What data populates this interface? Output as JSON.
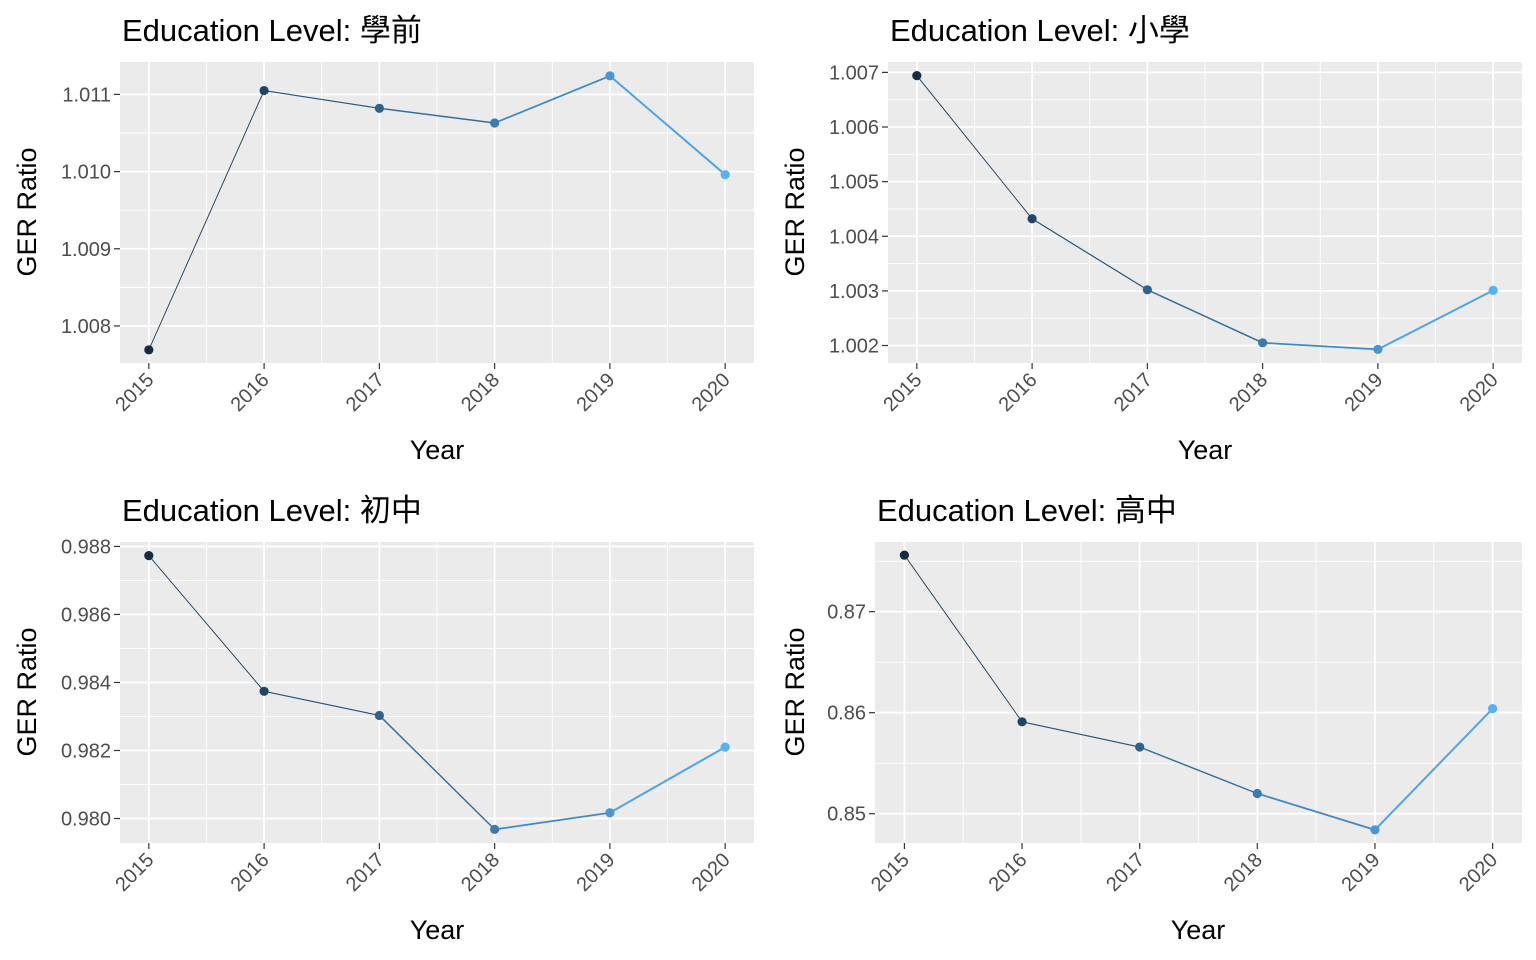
{
  "chart_data": [
    {
      "type": "line",
      "title": "Education Level: 學前",
      "xlabel": "Year",
      "ylabel": "GER Ratio",
      "x": [
        2015,
        2016,
        2017,
        2018,
        2019,
        2020
      ],
      "values": [
        1.00769,
        1.01105,
        1.01082,
        1.01063,
        1.01124,
        1.00996
      ],
      "yticks": [
        1.008,
        1.009,
        1.01,
        1.011
      ],
      "ytick_labels": [
        "1.008",
        "1.009",
        "1.010",
        "1.011"
      ],
      "ylim": [
        1.00752,
        1.01142
      ],
      "color_gradient": [
        "#132b43",
        "#56b1f7"
      ],
      "grid": true
    },
    {
      "type": "line",
      "title": "Education Level: 小學",
      "xlabel": "Year",
      "ylabel": "GER Ratio",
      "x": [
        2015,
        2016,
        2017,
        2018,
        2019,
        2020
      ],
      "values": [
        1.00694,
        1.00432,
        1.00302,
        1.00205,
        1.00193,
        1.00301
      ],
      "yticks": [
        1.002,
        1.003,
        1.004,
        1.005,
        1.006,
        1.007
      ],
      "ytick_labels": [
        "1.002",
        "1.003",
        "1.004",
        "1.005",
        "1.006",
        "1.007"
      ],
      "ylim": [
        1.00168,
        1.00719
      ],
      "color_gradient": [
        "#132b43",
        "#56b1f7"
      ],
      "grid": true
    },
    {
      "type": "line",
      "title": "Education Level: 初中",
      "xlabel": "Year",
      "ylabel": "GER Ratio",
      "x": [
        2015,
        2016,
        2017,
        2018,
        2019,
        2020
      ],
      "values": [
        0.98773,
        0.98374,
        0.98303,
        0.97968,
        0.98017,
        0.9821
      ],
      "yticks": [
        0.98,
        0.982,
        0.984,
        0.986,
        0.988
      ],
      "ytick_labels": [
        "0.980",
        "0.982",
        "0.984",
        "0.986",
        "0.988"
      ],
      "ylim": [
        0.97928,
        0.98813
      ],
      "color_gradient": [
        "#132b43",
        "#56b1f7"
      ],
      "grid": true
    },
    {
      "type": "line",
      "title": "Education Level: 高中",
      "xlabel": "Year",
      "ylabel": "GER Ratio",
      "x": [
        2015,
        2016,
        2017,
        2018,
        2019,
        2020
      ],
      "values": [
        0.8756,
        0.8591,
        0.8566,
        0.852,
        0.8484,
        0.8604
      ],
      "yticks": [
        0.85,
        0.86,
        0.87
      ],
      "ytick_labels": [
        "0.85",
        "0.86",
        "0.87"
      ],
      "ylim": [
        0.8471,
        0.8769
      ],
      "color_gradient": [
        "#132b43",
        "#56b1f7"
      ],
      "grid": true
    }
  ]
}
